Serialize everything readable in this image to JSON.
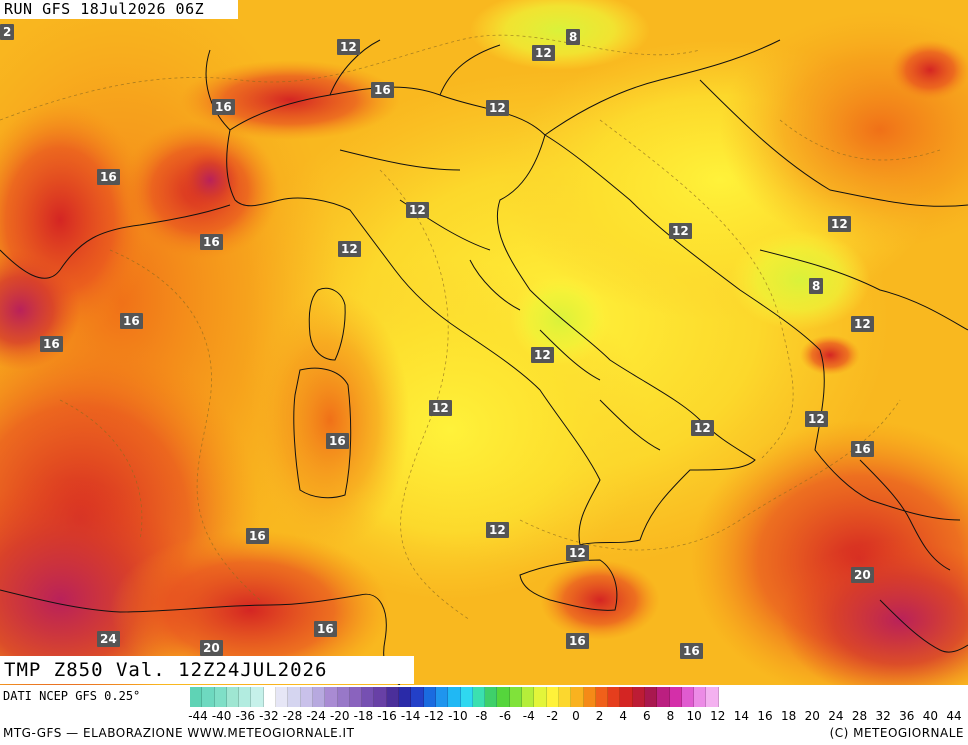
{
  "header": {
    "run_label": "RUN GFS 18Jul2026 06Z"
  },
  "field_label": "TMP Z850 Val. 12Z24JUL2026",
  "contour_labels": [
    "2",
    "12",
    "8",
    "12",
    "16",
    "16",
    "12",
    "16",
    "12",
    "12",
    "16",
    "12",
    "12",
    "8",
    "16",
    "12",
    "16",
    "12",
    "12",
    "12",
    "16",
    "16",
    "12",
    "12",
    "20",
    "16",
    "24",
    "20",
    "16",
    "16"
  ],
  "legend": {
    "source": "DATI NCEP GFS 0.25°",
    "ticks": [
      "-44",
      "-40",
      "-36",
      "-32",
      "-28",
      "-24",
      "-20",
      "-18",
      "-16",
      "-14",
      "-12",
      "-10",
      "-8",
      "-6",
      "-4",
      "-2",
      "0",
      "2",
      "4",
      "6",
      "8",
      "10",
      "12",
      "14",
      "16",
      "18",
      "20",
      "24",
      "28",
      "32",
      "36",
      "40",
      "44"
    ],
    "colors": [
      "#5fd3b5",
      "#6ed9c0",
      "#7fdfc7",
      "#9fe6d2",
      "#b2ece0",
      "#c6f1ea",
      "#ffffff",
      "#e6e6f6",
      "#d5d5f0",
      "#c9c1ea",
      "#b7a9df",
      "#a98bd3",
      "#9878c8",
      "#8a63be",
      "#7650b2",
      "#6840a6",
      "#4b2f9a",
      "#2a2aa8",
      "#2340c8",
      "#1a6be0",
      "#1f95ee",
      "#20b8f4",
      "#2fd8f0",
      "#3be0b0",
      "#3fd06a",
      "#55d53c",
      "#80e23a",
      "#b5ee3a",
      "#e3f53a",
      "#fff23a",
      "#fcd72e",
      "#f9b21f",
      "#f58a17",
      "#f0601a",
      "#e53e1d",
      "#d42523",
      "#bd1c35",
      "#a9184f",
      "#bb1f80",
      "#d42fa9",
      "#e05bd0",
      "#ec8be6",
      "#f4b1f0"
    ],
    "footer_left": "MTG-GFS — ELABORAZIONE WWW.METEOGIORNALE.IT",
    "footer_right": "(C) METEOGIORNALE"
  }
}
